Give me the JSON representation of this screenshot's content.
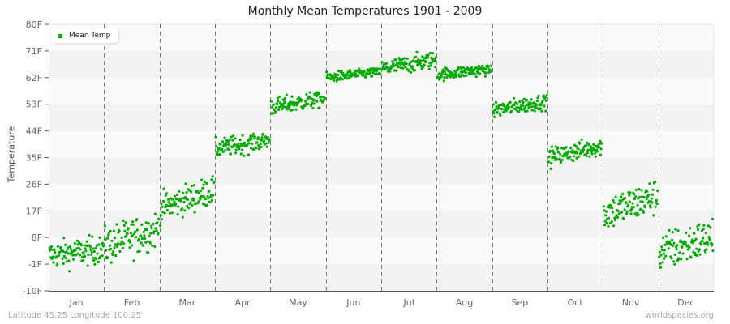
{
  "chart": {
    "title": "Monthly Mean Temperatures 1901 - 2009",
    "ylabel": "Temperature",
    "legend_label": "Mean Temp",
    "footer_left": "Latitude 45.25 Longitude 100.25",
    "footer_right": "worldspecies.org",
    "colors": {
      "point": "#00aa00",
      "band_light": "#fafafa",
      "band_dark": "#f3f3f3",
      "axis": "#555555",
      "divider": "#777777"
    }
  },
  "chart_data": {
    "type": "scatter",
    "title": "Monthly Mean Temperatures 1901 - 2009",
    "xlabel": "",
    "ylabel": "Temperature",
    "ylim": [
      -10,
      80
    ],
    "yticks": [
      "-10F",
      "-1F",
      "8F",
      "17F",
      "26F",
      "35F",
      "44F",
      "53F",
      "62F",
      "71F",
      "80F"
    ],
    "categories": [
      "Jan",
      "Feb",
      "Mar",
      "Apr",
      "May",
      "Jun",
      "Jul",
      "Aug",
      "Sep",
      "Oct",
      "Nov",
      "Dec"
    ],
    "legend": [
      "Mean Temp"
    ],
    "legend_position": "top-left",
    "grid": "alternating horizontal bands, dashed vertical month dividers",
    "series": [
      {
        "name": "Mean Temp",
        "years": "1901-2009 (109 points per month)",
        "monthly_summary": [
          {
            "month": "Jan",
            "min": -7,
            "max": 9,
            "typical": 2,
            "trend_start": 2,
            "trend_end": 4
          },
          {
            "month": "Feb",
            "min": -4,
            "max": 18,
            "typical": 7,
            "trend_start": 5,
            "trend_end": 11
          },
          {
            "month": "Mar",
            "min": 12,
            "max": 29,
            "typical": 21,
            "trend_start": 18,
            "trend_end": 24
          },
          {
            "month": "Apr",
            "min": 32,
            "max": 43,
            "typical": 38,
            "trend_start": 38,
            "trend_end": 41
          },
          {
            "month": "May",
            "min": 47,
            "max": 57,
            "typical": 52,
            "trend_start": 52,
            "trend_end": 55
          },
          {
            "month": "Jun",
            "min": 59,
            "max": 65,
            "typical": 62,
            "trend_start": 62,
            "trend_end": 64
          },
          {
            "month": "Jul",
            "min": 63,
            "max": 73,
            "typical": 66,
            "trend_start": 65,
            "trend_end": 68
          },
          {
            "month": "Aug",
            "min": 59,
            "max": 66,
            "typical": 63,
            "trend_start": 63,
            "trend_end": 65
          },
          {
            "month": "Sep",
            "min": 47,
            "max": 56,
            "typical": 51,
            "trend_start": 51,
            "trend_end": 54
          },
          {
            "month": "Oct",
            "min": 31,
            "max": 42,
            "typical": 37,
            "trend_start": 35,
            "trend_end": 39
          },
          {
            "month": "Nov",
            "min": 8,
            "max": 29,
            "typical": 17,
            "trend_start": 16,
            "trend_end": 22
          },
          {
            "month": "Dec",
            "min": -8,
            "max": 15,
            "typical": 5,
            "trend_start": 3,
            "trend_end": 8
          }
        ]
      }
    ]
  }
}
